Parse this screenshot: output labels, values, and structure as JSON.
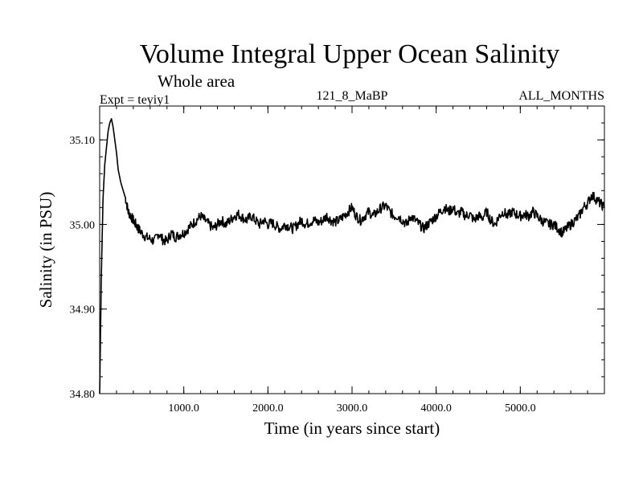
{
  "chart_data": {
    "type": "line",
    "title": "Volume Integral Upper Ocean Salinity",
    "subtitle": "Whole area",
    "annotations": {
      "left": "Expt = teyiy1",
      "center": "121_8_MaBP",
      "right": "ALL_MONTHS"
    },
    "xlabel": "Time (in years since start)",
    "ylabel": "Salinity (in PSU)",
    "xlim": [
      0,
      6000
    ],
    "ylim": [
      34.8,
      35.14
    ],
    "x_ticks": [
      {
        "value": 1000,
        "label": "1000.0"
      },
      {
        "value": 2000,
        "label": "2000.0"
      },
      {
        "value": 3000,
        "label": "3000.0"
      },
      {
        "value": 4000,
        "label": "4000.0"
      },
      {
        "value": 5000,
        "label": "5000.0"
      }
    ],
    "y_ticks": [
      {
        "value": 34.8,
        "label": "34.80"
      },
      {
        "value": 34.9,
        "label": "34.90"
      },
      {
        "value": 35.0,
        "label": "35.00"
      },
      {
        "value": 35.1,
        "label": "35.10"
      }
    ],
    "series": [
      {
        "name": "teyiy1",
        "color": "#000000",
        "x": [
          0,
          20,
          40,
          60,
          80,
          100,
          120,
          140,
          160,
          180,
          200,
          220,
          250,
          280,
          310,
          340,
          370,
          400,
          430,
          460,
          500,
          550,
          600,
          650,
          700,
          750,
          800,
          850,
          900,
          950,
          1000,
          1050,
          1100,
          1150,
          1200,
          1250,
          1300,
          1350,
          1400,
          1450,
          1500,
          1550,
          1600,
          1650,
          1700,
          1750,
          1800,
          1850,
          1900,
          1950,
          2000,
          2050,
          2100,
          2150,
          2200,
          2250,
          2300,
          2350,
          2400,
          2450,
          2500,
          2550,
          2600,
          2650,
          2700,
          2750,
          2800,
          2850,
          2900,
          2950,
          3000,
          3050,
          3100,
          3150,
          3200,
          3250,
          3300,
          3350,
          3400,
          3450,
          3500,
          3550,
          3600,
          3650,
          3700,
          3750,
          3800,
          3850,
          3900,
          3950,
          4000,
          4050,
          4100,
          4150,
          4200,
          4250,
          4300,
          4350,
          4400,
          4450,
          4500,
          4550,
          4600,
          4650,
          4700,
          4750,
          4800,
          4850,
          4900,
          4950,
          5000,
          5050,
          5100,
          5150,
          5200,
          5250,
          5300,
          5350,
          5400,
          5450,
          5500,
          5550,
          5600,
          5650,
          5700,
          5750,
          5800,
          5850,
          5900,
          5950,
          6000
        ],
        "values": [
          34.8,
          34.94,
          35.03,
          35.07,
          35.09,
          35.11,
          35.12,
          35.125,
          35.115,
          35.1,
          35.085,
          35.065,
          35.05,
          35.04,
          35.03,
          35.015,
          35.01,
          35.005,
          35.0,
          34.995,
          34.99,
          34.985,
          34.983,
          34.98,
          34.99,
          34.982,
          34.98,
          34.99,
          34.985,
          34.988,
          34.99,
          34.995,
          35.0,
          35.005,
          35.01,
          35.005,
          35.0,
          34.995,
          35.0,
          35.005,
          35.0,
          35.005,
          35.01,
          35.012,
          35.008,
          35.005,
          35.01,
          35.005,
          35.0,
          35.005,
          35.0,
          35.002,
          34.998,
          34.995,
          35.0,
          34.998,
          34.995,
          35.0,
          35.005,
          35.0,
          35.003,
          35.005,
          35.002,
          35.005,
          35.01,
          35.005,
          35.003,
          35.005,
          35.01,
          35.015,
          35.02,
          35.01,
          35.005,
          35.01,
          35.015,
          35.01,
          35.015,
          35.02,
          35.022,
          35.015,
          35.01,
          35.01,
          35.005,
          35.0,
          35.01,
          35.005,
          35.0,
          34.995,
          35.0,
          35.005,
          35.01,
          35.015,
          35.02,
          35.015,
          35.02,
          35.012,
          35.015,
          35.01,
          35.012,
          35.005,
          35.01,
          35.008,
          35.015,
          35.005,
          35.0,
          35.01,
          35.015,
          35.01,
          35.015,
          35.012,
          35.01,
          35.012,
          35.01,
          35.015,
          35.01,
          35.005,
          35.002,
          35.0,
          35.0,
          34.995,
          34.99,
          34.995,
          35.0,
          35.005,
          35.01,
          35.02,
          35.025,
          35.035,
          35.03,
          35.025,
          35.02
        ]
      }
    ],
    "grid": false,
    "legend": "none"
  }
}
